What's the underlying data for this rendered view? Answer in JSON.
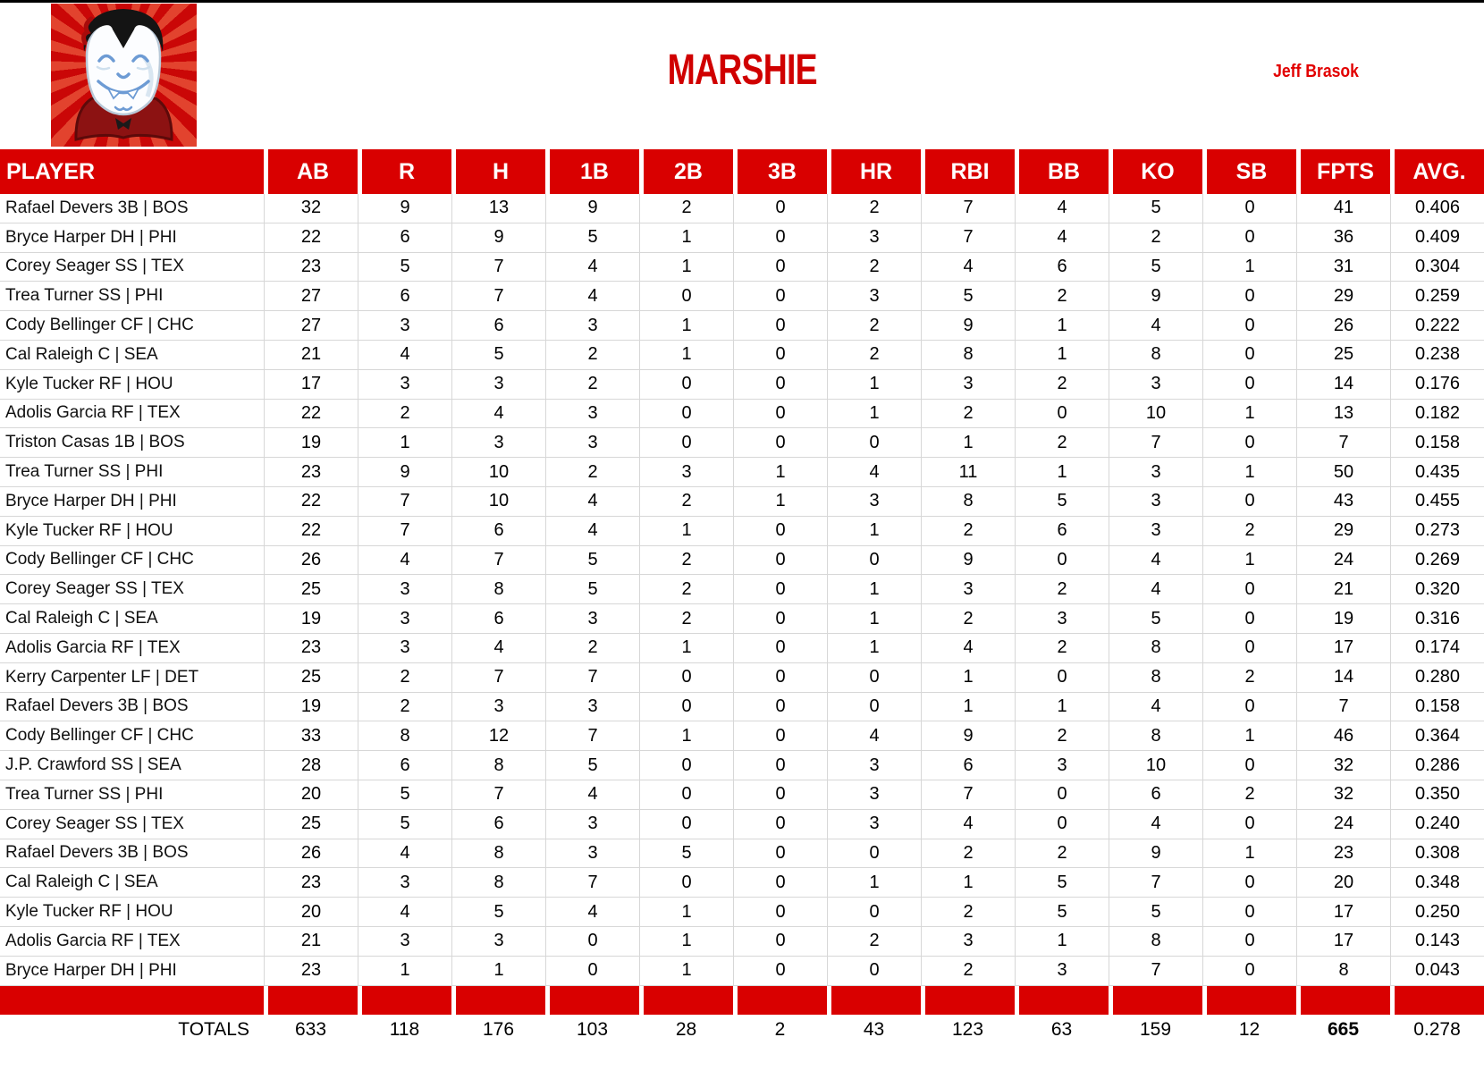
{
  "header": {
    "team_name": "MARSHIE",
    "owner_name": "Jeff Brasok",
    "logo": "vampire-mascot-logo"
  },
  "colors": {
    "accent_red": "#d90000",
    "title_red": "#d00000",
    "grid_line": "#d7d7d7",
    "logo_ray_dark": "#ca0707",
    "logo_ray_light": "#e2432e"
  },
  "table": {
    "columns": [
      "PLAYER",
      "AB",
      "R",
      "H",
      "1B",
      "2B",
      "3B",
      "HR",
      "RBI",
      "BB",
      "KO",
      "SB",
      "FPTS",
      "AVG."
    ],
    "rows": [
      {
        "player": "Rafael Devers 3B | BOS",
        "stats": [
          "32",
          "9",
          "13",
          "9",
          "2",
          "0",
          "2",
          "7",
          "4",
          "5",
          "0",
          "41",
          "0.406"
        ]
      },
      {
        "player": "Bryce Harper DH | PHI",
        "stats": [
          "22",
          "6",
          "9",
          "5",
          "1",
          "0",
          "3",
          "7",
          "4",
          "2",
          "0",
          "36",
          "0.409"
        ]
      },
      {
        "player": "Corey Seager SS | TEX",
        "stats": [
          "23",
          "5",
          "7",
          "4",
          "1",
          "0",
          "2",
          "4",
          "6",
          "5",
          "1",
          "31",
          "0.304"
        ]
      },
      {
        "player": "Trea Turner SS | PHI",
        "stats": [
          "27",
          "6",
          "7",
          "4",
          "0",
          "0",
          "3",
          "5",
          "2",
          "9",
          "0",
          "29",
          "0.259"
        ]
      },
      {
        "player": "Cody Bellinger CF | CHC",
        "stats": [
          "27",
          "3",
          "6",
          "3",
          "1",
          "0",
          "2",
          "9",
          "1",
          "4",
          "0",
          "26",
          "0.222"
        ]
      },
      {
        "player": "Cal Raleigh C | SEA",
        "stats": [
          "21",
          "4",
          "5",
          "2",
          "1",
          "0",
          "2",
          "8",
          "1",
          "8",
          "0",
          "25",
          "0.238"
        ]
      },
      {
        "player": "Kyle Tucker RF | HOU",
        "stats": [
          "17",
          "3",
          "3",
          "2",
          "0",
          "0",
          "1",
          "3",
          "2",
          "3",
          "0",
          "14",
          "0.176"
        ]
      },
      {
        "player": "Adolis Garcia RF | TEX",
        "stats": [
          "22",
          "2",
          "4",
          "3",
          "0",
          "0",
          "1",
          "2",
          "0",
          "10",
          "1",
          "13",
          "0.182"
        ]
      },
      {
        "player": "Triston Casas 1B | BOS",
        "stats": [
          "19",
          "1",
          "3",
          "3",
          "0",
          "0",
          "0",
          "1",
          "2",
          "7",
          "0",
          "7",
          "0.158"
        ]
      },
      {
        "player": "Trea Turner SS | PHI",
        "stats": [
          "23",
          "9",
          "10",
          "2",
          "3",
          "1",
          "4",
          "11",
          "1",
          "3",
          "1",
          "50",
          "0.435"
        ]
      },
      {
        "player": "Bryce Harper DH | PHI",
        "stats": [
          "22",
          "7",
          "10",
          "4",
          "2",
          "1",
          "3",
          "8",
          "5",
          "3",
          "0",
          "43",
          "0.455"
        ]
      },
      {
        "player": "Kyle Tucker RF | HOU",
        "stats": [
          "22",
          "7",
          "6",
          "4",
          "1",
          "0",
          "1",
          "2",
          "6",
          "3",
          "2",
          "29",
          "0.273"
        ]
      },
      {
        "player": "Cody Bellinger CF | CHC",
        "stats": [
          "26",
          "4",
          "7",
          "5",
          "2",
          "0",
          "0",
          "9",
          "0",
          "4",
          "1",
          "24",
          "0.269"
        ]
      },
      {
        "player": "Corey Seager SS | TEX",
        "stats": [
          "25",
          "3",
          "8",
          "5",
          "2",
          "0",
          "1",
          "3",
          "2",
          "4",
          "0",
          "21",
          "0.320"
        ]
      },
      {
        "player": "Cal Raleigh C | SEA",
        "stats": [
          "19",
          "3",
          "6",
          "3",
          "2",
          "0",
          "1",
          "2",
          "3",
          "5",
          "0",
          "19",
          "0.316"
        ]
      },
      {
        "player": "Adolis Garcia RF | TEX",
        "stats": [
          "23",
          "3",
          "4",
          "2",
          "1",
          "0",
          "1",
          "4",
          "2",
          "8",
          "0",
          "17",
          "0.174"
        ]
      },
      {
        "player": "Kerry Carpenter LF | DET",
        "stats": [
          "25",
          "2",
          "7",
          "7",
          "0",
          "0",
          "0",
          "1",
          "0",
          "8",
          "2",
          "14",
          "0.280"
        ]
      },
      {
        "player": "Rafael Devers 3B | BOS",
        "stats": [
          "19",
          "2",
          "3",
          "3",
          "0",
          "0",
          "0",
          "1",
          "1",
          "4",
          "0",
          "7",
          "0.158"
        ]
      },
      {
        "player": "Cody Bellinger CF | CHC",
        "stats": [
          "33",
          "8",
          "12",
          "7",
          "1",
          "0",
          "4",
          "9",
          "2",
          "8",
          "1",
          "46",
          "0.364"
        ]
      },
      {
        "player": "J.P. Crawford SS | SEA",
        "stats": [
          "28",
          "6",
          "8",
          "5",
          "0",
          "0",
          "3",
          "6",
          "3",
          "10",
          "0",
          "32",
          "0.286"
        ]
      },
      {
        "player": "Trea Turner SS | PHI",
        "stats": [
          "20",
          "5",
          "7",
          "4",
          "0",
          "0",
          "3",
          "7",
          "0",
          "6",
          "2",
          "32",
          "0.350"
        ]
      },
      {
        "player": "Corey Seager SS | TEX",
        "stats": [
          "25",
          "5",
          "6",
          "3",
          "0",
          "0",
          "3",
          "4",
          "0",
          "4",
          "0",
          "24",
          "0.240"
        ]
      },
      {
        "player": "Rafael Devers 3B | BOS",
        "stats": [
          "26",
          "4",
          "8",
          "3",
          "5",
          "0",
          "0",
          "2",
          "2",
          "9",
          "1",
          "23",
          "0.308"
        ]
      },
      {
        "player": "Cal Raleigh C | SEA",
        "stats": [
          "23",
          "3",
          "8",
          "7",
          "0",
          "0",
          "1",
          "1",
          "5",
          "7",
          "0",
          "20",
          "0.348"
        ]
      },
      {
        "player": "Kyle Tucker RF | HOU",
        "stats": [
          "20",
          "4",
          "5",
          "4",
          "1",
          "0",
          "0",
          "2",
          "5",
          "5",
          "0",
          "17",
          "0.250"
        ]
      },
      {
        "player": "Adolis Garcia RF | TEX",
        "stats": [
          "21",
          "3",
          "3",
          "0",
          "1",
          "0",
          "2",
          "3",
          "1",
          "8",
          "0",
          "17",
          "0.143"
        ]
      },
      {
        "player": "Bryce Harper DH | PHI",
        "stats": [
          "23",
          "1",
          "1",
          "0",
          "1",
          "0",
          "0",
          "2",
          "3",
          "7",
          "0",
          "8",
          "0.043"
        ]
      }
    ],
    "totals_label": "TOTALS",
    "totals": [
      "633",
      "118",
      "176",
      "103",
      "28",
      "2",
      "43",
      "123",
      "63",
      "159",
      "12",
      "665",
      "0.278"
    ]
  }
}
